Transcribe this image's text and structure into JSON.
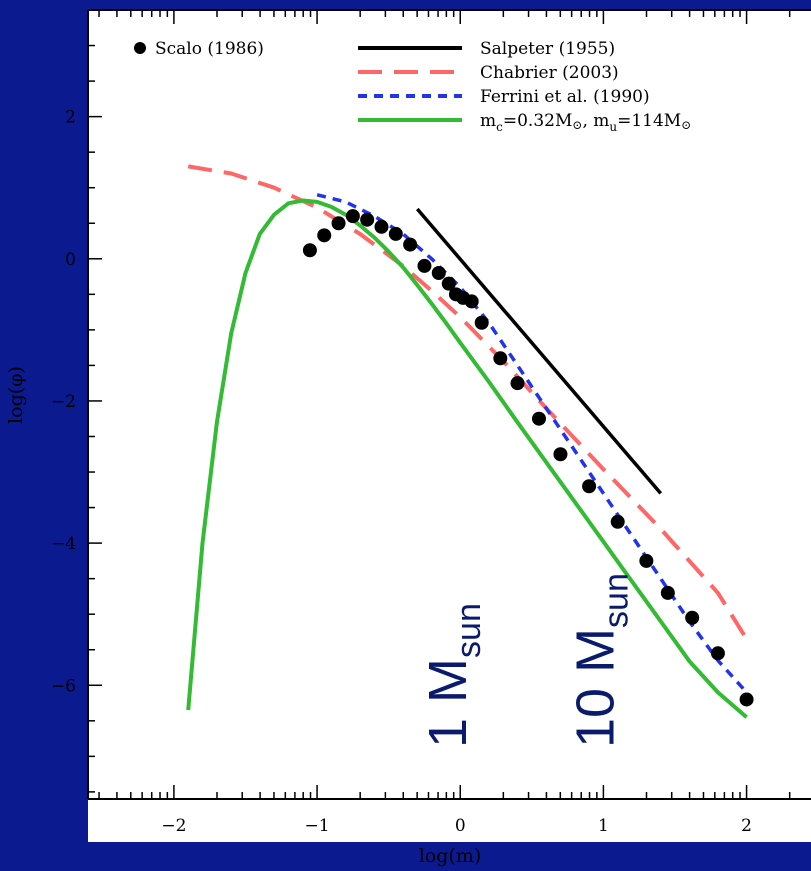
{
  "chart_data": {
    "type": "line",
    "xlabel": "log(m)",
    "ylabel": "log(φ)",
    "xlim": [
      -2.6,
      2.45
    ],
    "ylim": [
      -7.6,
      3.5
    ],
    "x_ticks": [
      -2,
      -1,
      0,
      1,
      2
    ],
    "x_tick_labels": [
      "−2",
      "−1",
      "0",
      "1",
      "2"
    ],
    "y_ticks": [
      2,
      0,
      -2,
      -4,
      -6
    ],
    "y_tick_labels": [
      "2",
      "0",
      "−2",
      "−4",
      "−6"
    ],
    "grid": false,
    "legend_position": "top",
    "colors": {
      "background": "#0b1a8e",
      "plot_area": "#ffffff",
      "scalo": "#000000",
      "salpeter": "#000000",
      "chabrier": "#ff6666",
      "ferrini": "#2233ee",
      "fit": "#33bb33",
      "annotation": "#0a1b6e"
    },
    "series": [
      {
        "name": "Scalo (1986)",
        "style": "points",
        "x": [
          -1.05,
          -0.95,
          -0.85,
          -0.75,
          -0.65,
          -0.55,
          -0.45,
          -0.35,
          -0.25,
          -0.15,
          -0.08,
          -0.03,
          0.02,
          0.08,
          0.15,
          0.28,
          0.4,
          0.55,
          0.7,
          0.9,
          1.1,
          1.3,
          1.45,
          1.62,
          1.8,
          2.0
        ],
        "y": [
          0.12,
          0.33,
          0.5,
          0.6,
          0.55,
          0.45,
          0.35,
          0.2,
          -0.1,
          -0.2,
          -0.35,
          -0.5,
          -0.55,
          -0.6,
          -0.9,
          -1.4,
          -1.75,
          -2.25,
          -2.75,
          -3.2,
          -3.7,
          -4.25,
          -4.7,
          -5.05,
          -5.55,
          -6.2
        ]
      },
      {
        "name": "Salpeter (1955)",
        "style": "solid",
        "x": [
          -0.3,
          1.4
        ],
        "y": [
          0.7,
          -3.3
        ]
      },
      {
        "name": "Chabrier (2003)",
        "style": "long-dash",
        "x": [
          -1.9,
          -1.6,
          -1.3,
          -1.0,
          -0.7,
          -0.4,
          -0.2,
          0.0,
          0.3,
          0.6,
          1.0,
          1.4,
          1.8,
          2.0
        ],
        "y": [
          1.3,
          1.2,
          1.0,
          0.72,
          0.35,
          -0.1,
          -0.45,
          -0.82,
          -1.44,
          -2.1,
          -2.96,
          -3.8,
          -4.7,
          -5.35
        ]
      },
      {
        "name": "Ferrini et al. (1990)",
        "style": "short-dash",
        "x": [
          -1.0,
          -0.8,
          -0.6,
          -0.4,
          -0.2,
          0.0,
          0.2,
          0.4,
          0.6,
          0.8,
          1.0,
          1.2,
          1.4,
          1.6,
          1.8,
          2.0
        ],
        "y": [
          0.9,
          0.8,
          0.6,
          0.35,
          0.0,
          -0.4,
          -0.9,
          -1.5,
          -2.1,
          -2.7,
          -3.3,
          -3.9,
          -4.5,
          -5.1,
          -5.65,
          -6.1
        ]
      },
      {
        "name": "m_c=0.32M⊙, m_u=114M⊙",
        "style": "solid",
        "x": [
          -1.9,
          -1.8,
          -1.7,
          -1.6,
          -1.5,
          -1.4,
          -1.3,
          -1.2,
          -1.1,
          -1.0,
          -0.9,
          -0.8,
          -0.7,
          -0.6,
          -0.5,
          -0.4,
          -0.3,
          -0.2,
          -0.1,
          0.0,
          0.2,
          0.4,
          0.6,
          0.8,
          1.0,
          1.2,
          1.4,
          1.6,
          1.8,
          2.0
        ],
        "y": [
          -6.35,
          -4.0,
          -2.3,
          -1.05,
          -0.2,
          0.35,
          0.62,
          0.78,
          0.82,
          0.8,
          0.73,
          0.62,
          0.47,
          0.3,
          0.1,
          -0.12,
          -0.37,
          -0.63,
          -0.9,
          -1.18,
          -1.73,
          -2.3,
          -2.86,
          -3.42,
          -3.98,
          -4.54,
          -5.1,
          -5.66,
          -6.1,
          -6.45
        ]
      }
    ],
    "legend": [
      {
        "label": "Scalo (1986)",
        "marker": "dot"
      },
      {
        "label": "Salpeter (1955)",
        "marker": "solid-black"
      },
      {
        "label": "Chabrier (2003)",
        "marker": "dash-red"
      },
      {
        "label": "Ferrini et al. (1990)",
        "marker": "dash-blue"
      },
      {
        "label_main": "m",
        "label_sub1": "c",
        "label_mid": "=0.32M",
        "label_sun": "⊙",
        "label_sep": ", m",
        "label_sub2": "u",
        "label_end": "=114M",
        "label_sun2": "⊙",
        "marker": "solid-green"
      }
    ],
    "annotations": [
      {
        "main": "1 M",
        "sub": "sun",
        "x": -0.1
      },
      {
        "main": "10 M",
        "sub": "sun",
        "x": 0.93
      }
    ]
  }
}
